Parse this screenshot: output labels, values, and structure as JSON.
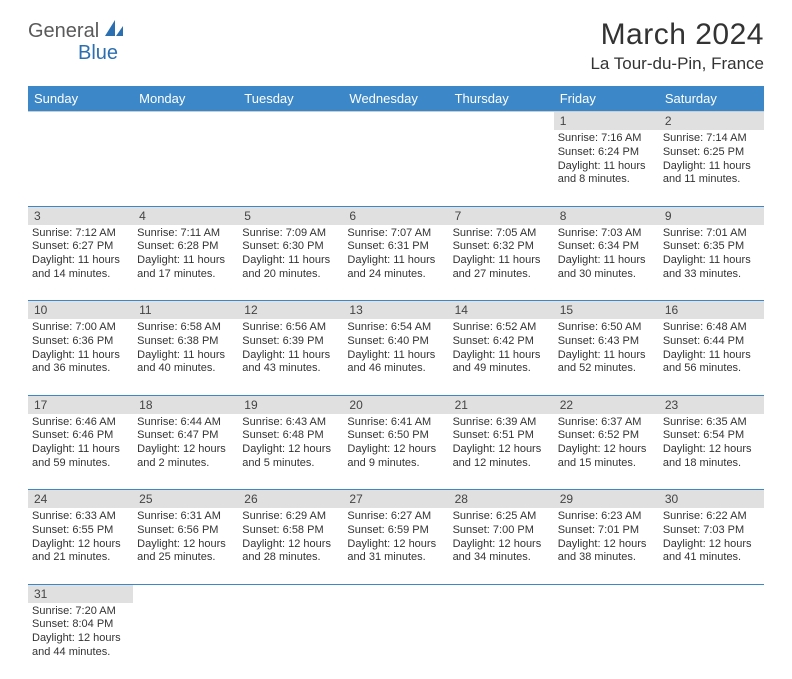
{
  "logo": {
    "text1": "General",
    "text2": "Blue"
  },
  "title": "March 2024",
  "location": "La Tour-du-Pin, France",
  "colors": {
    "header_bg": "#3b87c8",
    "header_fg": "#ffffff",
    "daynum_bg": "#e0e0e0",
    "border": "#3b87c8",
    "text": "#333333",
    "logo_gray": "#5a5a5a",
    "logo_blue": "#2c6fb0"
  },
  "day_headers": [
    "Sunday",
    "Monday",
    "Tuesday",
    "Wednesday",
    "Thursday",
    "Friday",
    "Saturday"
  ],
  "weeks": [
    [
      {
        "n": "",
        "lines": []
      },
      {
        "n": "",
        "lines": []
      },
      {
        "n": "",
        "lines": []
      },
      {
        "n": "",
        "lines": []
      },
      {
        "n": "",
        "lines": []
      },
      {
        "n": "1",
        "lines": [
          "Sunrise: 7:16 AM",
          "Sunset: 6:24 PM",
          "Daylight: 11 hours",
          "and 8 minutes."
        ]
      },
      {
        "n": "2",
        "lines": [
          "Sunrise: 7:14 AM",
          "Sunset: 6:25 PM",
          "Daylight: 11 hours",
          "and 11 minutes."
        ]
      }
    ],
    [
      {
        "n": "3",
        "lines": [
          "Sunrise: 7:12 AM",
          "Sunset: 6:27 PM",
          "Daylight: 11 hours",
          "and 14 minutes."
        ]
      },
      {
        "n": "4",
        "lines": [
          "Sunrise: 7:11 AM",
          "Sunset: 6:28 PM",
          "Daylight: 11 hours",
          "and 17 minutes."
        ]
      },
      {
        "n": "5",
        "lines": [
          "Sunrise: 7:09 AM",
          "Sunset: 6:30 PM",
          "Daylight: 11 hours",
          "and 20 minutes."
        ]
      },
      {
        "n": "6",
        "lines": [
          "Sunrise: 7:07 AM",
          "Sunset: 6:31 PM",
          "Daylight: 11 hours",
          "and 24 minutes."
        ]
      },
      {
        "n": "7",
        "lines": [
          "Sunrise: 7:05 AM",
          "Sunset: 6:32 PM",
          "Daylight: 11 hours",
          "and 27 minutes."
        ]
      },
      {
        "n": "8",
        "lines": [
          "Sunrise: 7:03 AM",
          "Sunset: 6:34 PM",
          "Daylight: 11 hours",
          "and 30 minutes."
        ]
      },
      {
        "n": "9",
        "lines": [
          "Sunrise: 7:01 AM",
          "Sunset: 6:35 PM",
          "Daylight: 11 hours",
          "and 33 minutes."
        ]
      }
    ],
    [
      {
        "n": "10",
        "lines": [
          "Sunrise: 7:00 AM",
          "Sunset: 6:36 PM",
          "Daylight: 11 hours",
          "and 36 minutes."
        ]
      },
      {
        "n": "11",
        "lines": [
          "Sunrise: 6:58 AM",
          "Sunset: 6:38 PM",
          "Daylight: 11 hours",
          "and 40 minutes."
        ]
      },
      {
        "n": "12",
        "lines": [
          "Sunrise: 6:56 AM",
          "Sunset: 6:39 PM",
          "Daylight: 11 hours",
          "and 43 minutes."
        ]
      },
      {
        "n": "13",
        "lines": [
          "Sunrise: 6:54 AM",
          "Sunset: 6:40 PM",
          "Daylight: 11 hours",
          "and 46 minutes."
        ]
      },
      {
        "n": "14",
        "lines": [
          "Sunrise: 6:52 AM",
          "Sunset: 6:42 PM",
          "Daylight: 11 hours",
          "and 49 minutes."
        ]
      },
      {
        "n": "15",
        "lines": [
          "Sunrise: 6:50 AM",
          "Sunset: 6:43 PM",
          "Daylight: 11 hours",
          "and 52 minutes."
        ]
      },
      {
        "n": "16",
        "lines": [
          "Sunrise: 6:48 AM",
          "Sunset: 6:44 PM",
          "Daylight: 11 hours",
          "and 56 minutes."
        ]
      }
    ],
    [
      {
        "n": "17",
        "lines": [
          "Sunrise: 6:46 AM",
          "Sunset: 6:46 PM",
          "Daylight: 11 hours",
          "and 59 minutes."
        ]
      },
      {
        "n": "18",
        "lines": [
          "Sunrise: 6:44 AM",
          "Sunset: 6:47 PM",
          "Daylight: 12 hours",
          "and 2 minutes."
        ]
      },
      {
        "n": "19",
        "lines": [
          "Sunrise: 6:43 AM",
          "Sunset: 6:48 PM",
          "Daylight: 12 hours",
          "and 5 minutes."
        ]
      },
      {
        "n": "20",
        "lines": [
          "Sunrise: 6:41 AM",
          "Sunset: 6:50 PM",
          "Daylight: 12 hours",
          "and 9 minutes."
        ]
      },
      {
        "n": "21",
        "lines": [
          "Sunrise: 6:39 AM",
          "Sunset: 6:51 PM",
          "Daylight: 12 hours",
          "and 12 minutes."
        ]
      },
      {
        "n": "22",
        "lines": [
          "Sunrise: 6:37 AM",
          "Sunset: 6:52 PM",
          "Daylight: 12 hours",
          "and 15 minutes."
        ]
      },
      {
        "n": "23",
        "lines": [
          "Sunrise: 6:35 AM",
          "Sunset: 6:54 PM",
          "Daylight: 12 hours",
          "and 18 minutes."
        ]
      }
    ],
    [
      {
        "n": "24",
        "lines": [
          "Sunrise: 6:33 AM",
          "Sunset: 6:55 PM",
          "Daylight: 12 hours",
          "and 21 minutes."
        ]
      },
      {
        "n": "25",
        "lines": [
          "Sunrise: 6:31 AM",
          "Sunset: 6:56 PM",
          "Daylight: 12 hours",
          "and 25 minutes."
        ]
      },
      {
        "n": "26",
        "lines": [
          "Sunrise: 6:29 AM",
          "Sunset: 6:58 PM",
          "Daylight: 12 hours",
          "and 28 minutes."
        ]
      },
      {
        "n": "27",
        "lines": [
          "Sunrise: 6:27 AM",
          "Sunset: 6:59 PM",
          "Daylight: 12 hours",
          "and 31 minutes."
        ]
      },
      {
        "n": "28",
        "lines": [
          "Sunrise: 6:25 AM",
          "Sunset: 7:00 PM",
          "Daylight: 12 hours",
          "and 34 minutes."
        ]
      },
      {
        "n": "29",
        "lines": [
          "Sunrise: 6:23 AM",
          "Sunset: 7:01 PM",
          "Daylight: 12 hours",
          "and 38 minutes."
        ]
      },
      {
        "n": "30",
        "lines": [
          "Sunrise: 6:22 AM",
          "Sunset: 7:03 PM",
          "Daylight: 12 hours",
          "and 41 minutes."
        ]
      }
    ],
    [
      {
        "n": "31",
        "lines": [
          "Sunrise: 7:20 AM",
          "Sunset: 8:04 PM",
          "Daylight: 12 hours",
          "and 44 minutes."
        ]
      },
      {
        "n": "",
        "lines": []
      },
      {
        "n": "",
        "lines": []
      },
      {
        "n": "",
        "lines": []
      },
      {
        "n": "",
        "lines": []
      },
      {
        "n": "",
        "lines": []
      },
      {
        "n": "",
        "lines": []
      }
    ]
  ]
}
